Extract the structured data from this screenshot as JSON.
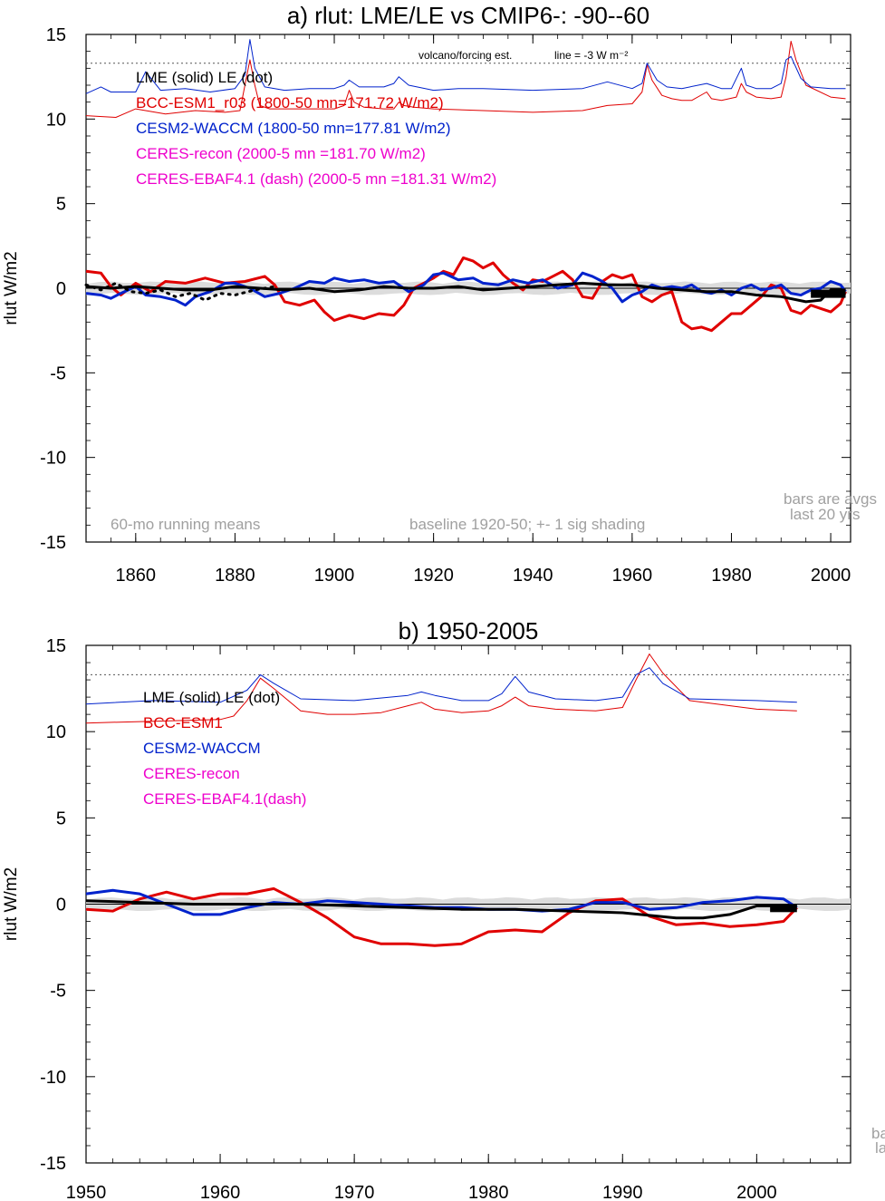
{
  "chart_data": [
    {
      "type": "line",
      "title": "a) rlut: LME/LE vs CMIP6-: -90--60",
      "ylabel": "rlut W/m2",
      "xlim": [
        1850,
        2004
      ],
      "ylim": [
        -15,
        15
      ],
      "x_ticks": [
        1860,
        1880,
        1900,
        1920,
        1940,
        1960,
        1980,
        2000
      ],
      "y_ticks": [
        15,
        10,
        5,
        0,
        -5,
        -10,
        -15
      ],
      "grid": false,
      "legend": [
        {
          "label": "LME (solid)   LE (dot)",
          "color": "#000000"
        },
        {
          "label": "BCC-ESM1_r03 (1800-50 mn=171.72 W/m2)",
          "color": "#e00000"
        },
        {
          "label": "CESM2-WACCM (1800-50 mn=177.81 W/m2)",
          "color": "#0022cc"
        },
        {
          "label": "CERES-recon (2000-5 mn =181.70 W/m2)",
          "color": "#ee00cc"
        },
        {
          "label": "CERES-EBAF4.1 (dash) (2000-5 mn =181.31 W/m2)",
          "color": "#ee00cc"
        }
      ],
      "annotations": {
        "volcano": "volcano/forcing est.",
        "line_eq": "line = -3 W m⁻²",
        "running": "60-mo running means",
        "baseline": "baseline 1920-50; +- 1 sig shading",
        "bars1": "bars are avgs",
        "bars2": "last 20 yrs"
      },
      "reference_line": 13.3,
      "series": [
        {
          "name": "BCC-ESM1_r03",
          "color": "#e00000",
          "x": [
            1850,
            1853,
            1855,
            1857,
            1860,
            1863,
            1866,
            1870,
            1874,
            1878,
            1882,
            1886,
            1888,
            1890,
            1893,
            1896,
            1898,
            1900,
            1903,
            1906,
            1909,
            1912,
            1914,
            1916,
            1918,
            1920,
            1922,
            1924,
            1926,
            1928,
            1930,
            1932,
            1934,
            1936,
            1938,
            1940,
            1942,
            1944,
            1946,
            1948,
            1950,
            1952,
            1954,
            1956,
            1958,
            1960,
            1962,
            1964,
            1966,
            1968,
            1970,
            1972,
            1974,
            1976,
            1978,
            1980,
            1982,
            1984,
            1986,
            1988,
            1990,
            1992,
            1994,
            1996,
            1998,
            2000,
            2002,
            2003
          ],
          "y": [
            1.0,
            0.9,
            0.1,
            -0.4,
            0.3,
            -0.2,
            0.4,
            0.3,
            0.6,
            0.3,
            0.4,
            0.7,
            0.2,
            -0.8,
            -1.0,
            -0.7,
            -1.4,
            -1.9,
            -1.6,
            -1.8,
            -1.5,
            -1.6,
            -1.0,
            0.0,
            0.3,
            0.6,
            1.0,
            0.8,
            1.8,
            1.6,
            1.2,
            1.5,
            0.8,
            0.3,
            -0.1,
            0.5,
            0.4,
            0.7,
            1.0,
            0.5,
            -0.5,
            -0.6,
            0.4,
            0.8,
            0.6,
            0.8,
            -0.5,
            -0.8,
            -0.4,
            -0.2,
            -2.0,
            -2.4,
            -2.3,
            -2.5,
            -2.0,
            -1.5,
            -1.5,
            -1.0,
            -0.5,
            0.2,
            0.0,
            -1.3,
            -1.5,
            -1.0,
            -1.2,
            -1.4,
            -0.9,
            -0.2
          ]
        },
        {
          "name": "CESM2-WACCM",
          "color": "#0022cc",
          "x": [
            1850,
            1853,
            1855,
            1857,
            1860,
            1862,
            1865,
            1868,
            1870,
            1872,
            1875,
            1878,
            1880,
            1883,
            1886,
            1889,
            1892,
            1895,
            1898,
            1900,
            1903,
            1906,
            1909,
            1912,
            1915,
            1918,
            1920,
            1922,
            1925,
            1928,
            1930,
            1933,
            1936,
            1939,
            1942,
            1945,
            1948,
            1950,
            1952,
            1954,
            1956,
            1958,
            1960,
            1962,
            1964,
            1966,
            1968,
            1970,
            1972,
            1974,
            1976,
            1978,
            1980,
            1982,
            1984,
            1986,
            1988,
            1990,
            1992,
            1994,
            1996,
            1998,
            2000,
            2002,
            2003
          ],
          "y": [
            -0.3,
            -0.4,
            -0.6,
            -0.3,
            0.1,
            -0.4,
            -0.5,
            -0.7,
            -1.0,
            -0.5,
            -0.2,
            0.3,
            0.3,
            0.0,
            -0.5,
            -0.3,
            0.0,
            0.4,
            0.3,
            0.6,
            0.4,
            0.5,
            0.3,
            0.4,
            -0.2,
            0.2,
            0.8,
            0.9,
            0.5,
            0.6,
            0.3,
            0.2,
            0.5,
            0.3,
            0.5,
            0.0,
            0.2,
            0.9,
            0.7,
            0.4,
            0.0,
            -0.8,
            -0.4,
            -0.2,
            0.2,
            0.0,
            0.1,
            0.0,
            0.2,
            -0.2,
            -0.3,
            -0.1,
            -0.4,
            0.0,
            0.2,
            -0.1,
            0.0,
            0.2,
            -0.3,
            -0.4,
            -0.1,
            0.0,
            0.4,
            0.2,
            -0.2
          ]
        },
        {
          "name": "LME (solid)",
          "color": "#000000",
          "x": [
            1850,
            1855,
            1860,
            1865,
            1870,
            1875,
            1880,
            1885,
            1890,
            1895,
            1900,
            1905,
            1910,
            1915,
            1920,
            1925,
            1930,
            1935,
            1940,
            1945,
            1950,
            1955,
            1960,
            1965,
            1970,
            1975,
            1980,
            1985,
            1990,
            1995,
            1998,
            2000,
            2003
          ],
          "y": [
            0.1,
            0.0,
            0.1,
            0.0,
            -0.1,
            -0.1,
            0.1,
            0.0,
            -0.1,
            0.0,
            -0.2,
            -0.1,
            0.1,
            0.0,
            0.0,
            0.1,
            -0.1,
            0.0,
            0.1,
            0.2,
            0.3,
            0.2,
            0.2,
            0.0,
            -0.1,
            -0.2,
            -0.2,
            -0.4,
            -0.5,
            -0.8,
            -0.7,
            -0.1,
            -0.1
          ]
        },
        {
          "name": "LE (dot)",
          "color": "#000000",
          "dash": true,
          "x": [
            1850,
            1853,
            1856,
            1859,
            1862,
            1865,
            1868,
            1871,
            1874,
            1877,
            1880,
            1884,
            1888
          ],
          "y": [
            0.2,
            -0.1,
            0.3,
            -0.2,
            -0.3,
            -0.1,
            -0.5,
            -0.3,
            -0.7,
            -0.3,
            -0.4,
            -0.1,
            0.1
          ]
        },
        {
          "name": "BCC-ESM1 forcing",
          "color": "#e00000",
          "thin": true,
          "x": [
            1850,
            1856,
            1860,
            1866,
            1872,
            1878,
            1881,
            1882,
            1883,
            1884,
            1885,
            1887,
            1890,
            1895,
            1900,
            1902,
            1903,
            1904,
            1906,
            1910,
            1912,
            1913,
            1914,
            1916,
            1920,
            1930,
            1940,
            1950,
            1955,
            1960,
            1962,
            1963,
            1964,
            1966,
            1968,
            1970,
            1972,
            1975,
            1976,
            1978,
            1981,
            1982,
            1983,
            1985,
            1988,
            1990,
            1991,
            1992,
            1993,
            1995,
            2000,
            2003
          ],
          "y": [
            10.2,
            10.1,
            10.6,
            10.3,
            10.5,
            10.4,
            10.5,
            12.0,
            13.5,
            12.0,
            10.8,
            10.6,
            10.6,
            10.6,
            10.6,
            10.8,
            11.7,
            11.0,
            10.7,
            10.6,
            10.6,
            11.0,
            10.8,
            10.7,
            10.6,
            10.5,
            10.4,
            10.5,
            10.8,
            10.9,
            11.6,
            13.2,
            12.3,
            11.4,
            11.2,
            11.1,
            11.1,
            11.6,
            11.2,
            11.1,
            11.3,
            12.1,
            11.6,
            11.3,
            11.2,
            11.3,
            12.5,
            14.6,
            13.5,
            12.0,
            11.3,
            11.2
          ]
        },
        {
          "name": "CESM2-WACCM forcing",
          "color": "#0022cc",
          "thin": true,
          "x": [
            1850,
            1853,
            1855,
            1858,
            1860,
            1862,
            1865,
            1870,
            1875,
            1880,
            1882,
            1883,
            1884,
            1886,
            1890,
            1895,
            1900,
            1902,
            1903,
            1905,
            1910,
            1912,
            1913,
            1915,
            1920,
            1925,
            1930,
            1940,
            1950,
            1955,
            1960,
            1962,
            1963,
            1965,
            1967,
            1970,
            1975,
            1978,
            1980,
            1982,
            1983,
            1985,
            1988,
            1990,
            1991,
            1992,
            1994,
            1996,
            2000,
            2003
          ],
          "y": [
            11.5,
            11.9,
            11.6,
            11.6,
            11.6,
            12.8,
            11.7,
            11.8,
            11.6,
            11.8,
            12.6,
            14.7,
            13.0,
            11.9,
            11.7,
            11.8,
            11.8,
            12.0,
            12.3,
            11.9,
            11.9,
            12.1,
            12.5,
            12.0,
            11.7,
            11.8,
            11.8,
            11.7,
            11.8,
            12.2,
            11.8,
            12.1,
            13.3,
            12.3,
            11.9,
            11.8,
            12.1,
            11.8,
            11.8,
            13.0,
            12.0,
            11.8,
            11.8,
            12.1,
            13.5,
            13.7,
            12.4,
            11.9,
            11.8,
            11.8
          ]
        }
      ]
    },
    {
      "type": "line",
      "title": "b) 1950-2005",
      "ylabel": "rlut W/m2",
      "xlim": [
        1950,
        2007
      ],
      "ylim": [
        -15,
        15
      ],
      "x_ticks": [
        1950,
        1960,
        1970,
        1980,
        1990,
        2000
      ],
      "y_ticks": [
        15,
        10,
        5,
        0,
        -5,
        -10,
        -15
      ],
      "grid": false,
      "legend": [
        {
          "label": "LME (solid)      LE (dot)",
          "color": "#000000"
        },
        {
          "label": "BCC-ESM1",
          "color": "#e00000"
        },
        {
          "label": "CESM2-WACCM",
          "color": "#0022cc"
        },
        {
          "label": "CERES-recon",
          "color": "#ee00cc"
        },
        {
          "label": "CERES-EBAF4.1(dash)",
          "color": "#ee00cc"
        }
      ],
      "annotations": {
        "bars1": "ba",
        "bars2": "la"
      },
      "reference_line": 13.3,
      "series": [
        {
          "name": "BCC-ESM1",
          "color": "#e00000",
          "x": [
            1950,
            1952,
            1954,
            1956,
            1958,
            1960,
            1962,
            1964,
            1966,
            1968,
            1970,
            1972,
            1974,
            1976,
            1978,
            1980,
            1982,
            1984,
            1986,
            1988,
            1990,
            1992,
            1994,
            1996,
            1998,
            2000,
            2002,
            2003
          ],
          "y": [
            -0.3,
            -0.4,
            0.3,
            0.7,
            0.3,
            0.6,
            0.6,
            0.9,
            0.1,
            -0.8,
            -1.9,
            -2.3,
            -2.3,
            -2.4,
            -2.3,
            -1.6,
            -1.5,
            -1.6,
            -0.5,
            0.2,
            0.3,
            -0.7,
            -1.2,
            -1.1,
            -1.3,
            -1.2,
            -1.0,
            -0.2
          ]
        },
        {
          "name": "CESM2-WACCM",
          "color": "#0022cc",
          "x": [
            1950,
            1952,
            1954,
            1956,
            1958,
            1960,
            1962,
            1964,
            1966,
            1968,
            1970,
            1972,
            1974,
            1976,
            1978,
            1980,
            1982,
            1984,
            1986,
            1988,
            1990,
            1992,
            1994,
            1996,
            1998,
            2000,
            2002,
            2003
          ],
          "y": [
            0.6,
            0.8,
            0.6,
            0.0,
            -0.6,
            -0.6,
            -0.2,
            0.1,
            0.0,
            0.2,
            0.1,
            0.0,
            -0.1,
            -0.2,
            -0.2,
            -0.3,
            -0.3,
            -0.4,
            -0.3,
            0.1,
            0.1,
            -0.3,
            -0.2,
            0.1,
            0.2,
            0.4,
            0.3,
            -0.2
          ]
        },
        {
          "name": "LME (solid)",
          "color": "#000000",
          "x": [
            1950,
            1954,
            1958,
            1962,
            1966,
            1970,
            1974,
            1978,
            1982,
            1986,
            1990,
            1994,
            1996,
            1998,
            2000,
            2002,
            2003
          ],
          "y": [
            0.2,
            0.1,
            0.0,
            0.0,
            0.0,
            -0.1,
            -0.2,
            -0.3,
            -0.3,
            -0.4,
            -0.5,
            -0.8,
            -0.8,
            -0.6,
            -0.1,
            -0.1,
            -0.1
          ]
        },
        {
          "name": "BCC-ESM1 forcing",
          "color": "#e00000",
          "thin": true,
          "x": [
            1950,
            1955,
            1960,
            1961,
            1962,
            1963,
            1964,
            1966,
            1968,
            1970,
            1972,
            1974,
            1975,
            1976,
            1978,
            1980,
            1981,
            1982,
            1983,
            1985,
            1988,
            1990,
            1991,
            1992,
            1993,
            1995,
            2000,
            2003
          ],
          "y": [
            10.5,
            10.6,
            10.7,
            10.9,
            11.8,
            13.1,
            12.5,
            11.2,
            11.0,
            11.0,
            11.1,
            11.5,
            11.7,
            11.3,
            11.1,
            11.2,
            11.5,
            12.0,
            11.5,
            11.3,
            11.2,
            11.4,
            13.0,
            14.5,
            13.4,
            11.8,
            11.3,
            11.2
          ]
        },
        {
          "name": "CESM2-WACCM forcing",
          "color": "#0022cc",
          "thin": true,
          "x": [
            1950,
            1955,
            1960,
            1962,
            1963,
            1964,
            1966,
            1970,
            1974,
            1975,
            1976,
            1978,
            1980,
            1981,
            1982,
            1983,
            1985,
            1988,
            1990,
            1991,
            1992,
            1993,
            1995,
            2000,
            2003
          ],
          "y": [
            11.6,
            11.8,
            11.7,
            12.4,
            13.3,
            12.8,
            11.9,
            11.8,
            12.1,
            12.3,
            12.1,
            11.8,
            11.8,
            12.2,
            13.2,
            12.3,
            11.9,
            11.8,
            12.0,
            13.3,
            13.7,
            12.8,
            11.9,
            11.8,
            11.7
          ]
        }
      ]
    }
  ]
}
